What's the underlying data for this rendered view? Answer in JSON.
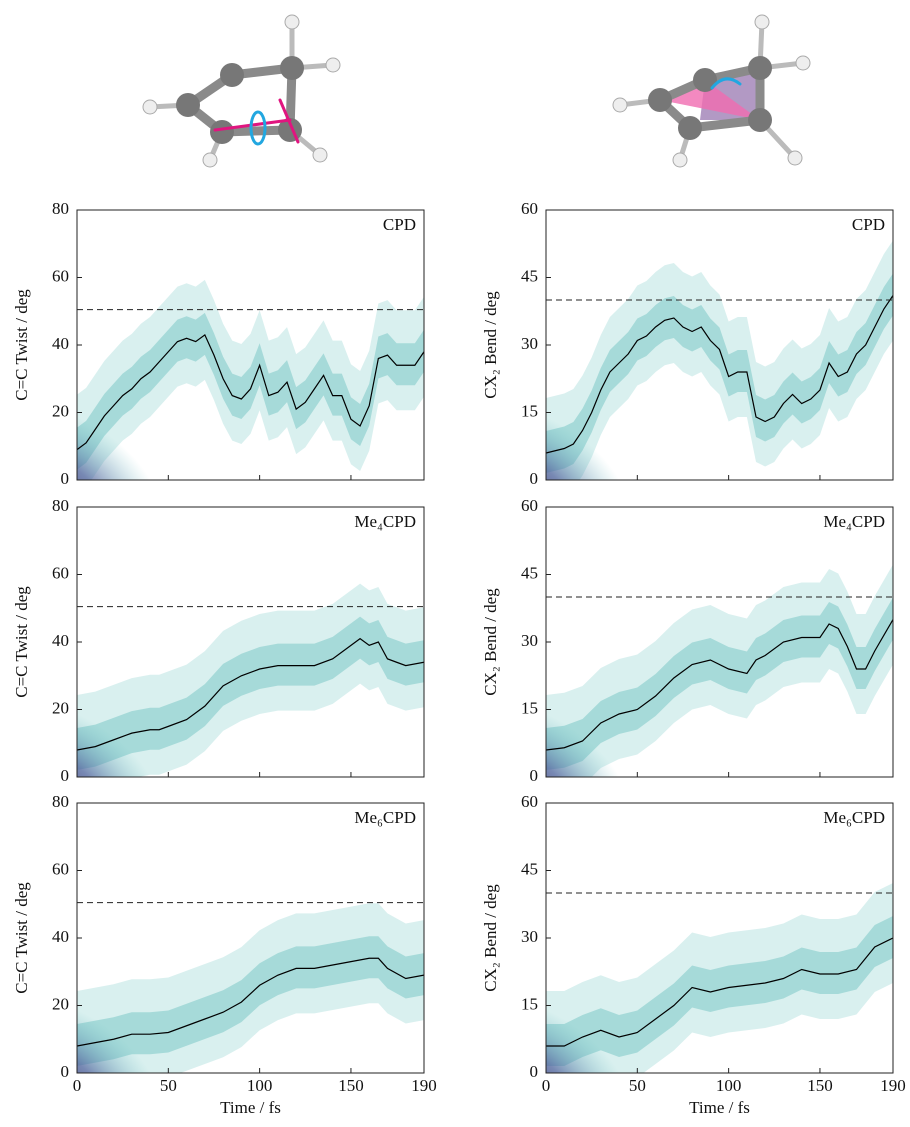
{
  "chart_data": [
    {
      "type": "line",
      "title": "CPD",
      "ylabel": "C=C Twist / deg",
      "x": [
        0,
        5,
        10,
        15,
        20,
        25,
        30,
        35,
        40,
        45,
        50,
        55,
        60,
        65,
        70,
        75,
        80,
        85,
        90,
        95,
        100,
        105,
        110,
        115,
        120,
        125,
        130,
        135,
        140,
        145,
        150,
        155,
        160,
        165,
        170,
        175,
        180,
        185,
        190
      ],
      "series": [
        {
          "color": "#000000",
          "values": [
            9,
            11,
            15,
            19,
            22,
            25,
            27,
            30,
            32,
            35,
            38,
            41,
            42,
            41,
            43,
            37,
            30,
            25,
            24,
            27,
            34,
            25,
            26,
            29,
            21,
            23,
            27,
            31,
            25,
            25,
            18,
            16,
            22,
            36,
            37,
            34,
            34,
            34,
            38
          ]
        }
      ],
      "reference_line": 50.5,
      "xlim": [
        0,
        190
      ],
      "xticks": [
        0,
        50,
        100,
        150,
        190
      ],
      "ylim": [
        0,
        80
      ],
      "yticks": [
        0,
        20,
        40,
        60,
        80
      ]
    },
    {
      "type": "line",
      "title": "CPD",
      "ylabel": "CX₂ Bend / deg",
      "x": [
        0,
        5,
        10,
        15,
        20,
        25,
        30,
        35,
        40,
        45,
        50,
        55,
        60,
        65,
        70,
        75,
        80,
        85,
        90,
        95,
        100,
        105,
        110,
        115,
        120,
        125,
        130,
        135,
        140,
        145,
        150,
        155,
        160,
        165,
        170,
        175,
        180,
        185,
        190
      ],
      "series": [
        {
          "color": "#000000",
          "values": [
            6,
            6.5,
            7,
            8,
            11,
            15,
            20,
            24,
            26,
            28,
            31,
            32,
            34,
            35.5,
            36,
            34,
            33,
            34,
            31,
            29,
            23,
            24,
            24,
            14,
            13,
            14,
            17,
            19,
            17,
            18,
            20,
            26,
            23,
            24,
            28,
            30,
            34,
            38,
            41
          ]
        }
      ],
      "reference_line": 40,
      "xlim": [
        0,
        190
      ],
      "xticks": [
        0,
        50,
        100,
        150,
        190
      ],
      "ylim": [
        0,
        60
      ],
      "yticks": [
        0,
        15,
        30,
        45,
        60
      ]
    },
    {
      "type": "line",
      "title": "Me₄CPD",
      "ylabel": "C=C Twist / deg",
      "x": [
        0,
        10,
        20,
        30,
        40,
        45,
        50,
        60,
        70,
        80,
        90,
        100,
        110,
        120,
        130,
        140,
        150,
        155,
        160,
        165,
        170,
        175,
        180,
        190
      ],
      "series": [
        {
          "color": "#000000",
          "values": [
            8,
            9,
            11,
            13,
            14,
            14,
            15,
            17,
            21,
            27,
            30,
            32,
            33,
            33,
            33,
            35,
            39,
            41,
            39,
            40,
            35,
            34,
            33,
            34
          ]
        }
      ],
      "reference_line": 50.5,
      "xlim": [
        0,
        190
      ],
      "xticks": [
        0,
        50,
        100,
        150,
        190
      ],
      "ylim": [
        0,
        80
      ],
      "yticks": [
        0,
        20,
        40,
        60,
        80
      ]
    },
    {
      "type": "line",
      "title": "Me₄CPD",
      "ylabel": "CX₂ Bend / deg",
      "x": [
        0,
        10,
        20,
        30,
        40,
        50,
        60,
        70,
        80,
        90,
        100,
        110,
        115,
        120,
        130,
        140,
        150,
        155,
        160,
        165,
        170,
        175,
        180,
        190
      ],
      "series": [
        {
          "color": "#000000",
          "values": [
            6,
            6.5,
            8,
            12,
            14,
            15,
            18,
            22,
            25,
            26,
            24,
            23,
            26,
            27,
            30,
            31,
            31,
            34,
            33,
            29,
            24,
            24,
            28,
            35
          ]
        }
      ],
      "reference_line": 40,
      "xlim": [
        0,
        190
      ],
      "xticks": [
        0,
        50,
        100,
        150,
        190
      ],
      "ylim": [
        0,
        60
      ],
      "yticks": [
        0,
        15,
        30,
        45,
        60
      ]
    },
    {
      "type": "line",
      "title": "Me₆CPD",
      "ylabel": "C=C Twist / deg",
      "xlabel": "Time / fs",
      "x": [
        0,
        10,
        20,
        30,
        40,
        50,
        60,
        70,
        80,
        90,
        100,
        110,
        120,
        130,
        140,
        150,
        160,
        165,
        170,
        180,
        190
      ],
      "series": [
        {
          "color": "#000000",
          "values": [
            8,
            9,
            10,
            11.5,
            11.5,
            12,
            14,
            16,
            18,
            21,
            26,
            29,
            31,
            31,
            32,
            33,
            34,
            34,
            31,
            28,
            29
          ]
        }
      ],
      "reference_line": 50.5,
      "xlim": [
        0,
        190
      ],
      "xticks": [
        0,
        50,
        100,
        150,
        190
      ],
      "ylim": [
        0,
        80
      ],
      "yticks": [
        0,
        20,
        40,
        60,
        80
      ]
    },
    {
      "type": "line",
      "title": "Me₆CPD",
      "ylabel": "CX₂ Bend / deg",
      "xlabel": "Time / fs",
      "x": [
        0,
        10,
        20,
        30,
        40,
        50,
        60,
        70,
        80,
        90,
        100,
        110,
        120,
        130,
        140,
        150,
        160,
        170,
        180,
        190
      ],
      "series": [
        {
          "color": "#000000",
          "values": [
            6,
            6,
            8,
            9.5,
            8,
            9,
            12,
            15,
            19,
            18,
            19,
            19.5,
            20,
            21,
            23,
            22,
            22,
            23,
            28,
            30
          ]
        }
      ],
      "reference_line": 40,
      "xlim": [
        0,
        190
      ],
      "xticks": [
        0,
        50,
        100,
        150,
        190
      ],
      "ylim": [
        0,
        60
      ],
      "yticks": [
        0,
        15,
        30,
        45,
        60
      ]
    }
  ]
}
